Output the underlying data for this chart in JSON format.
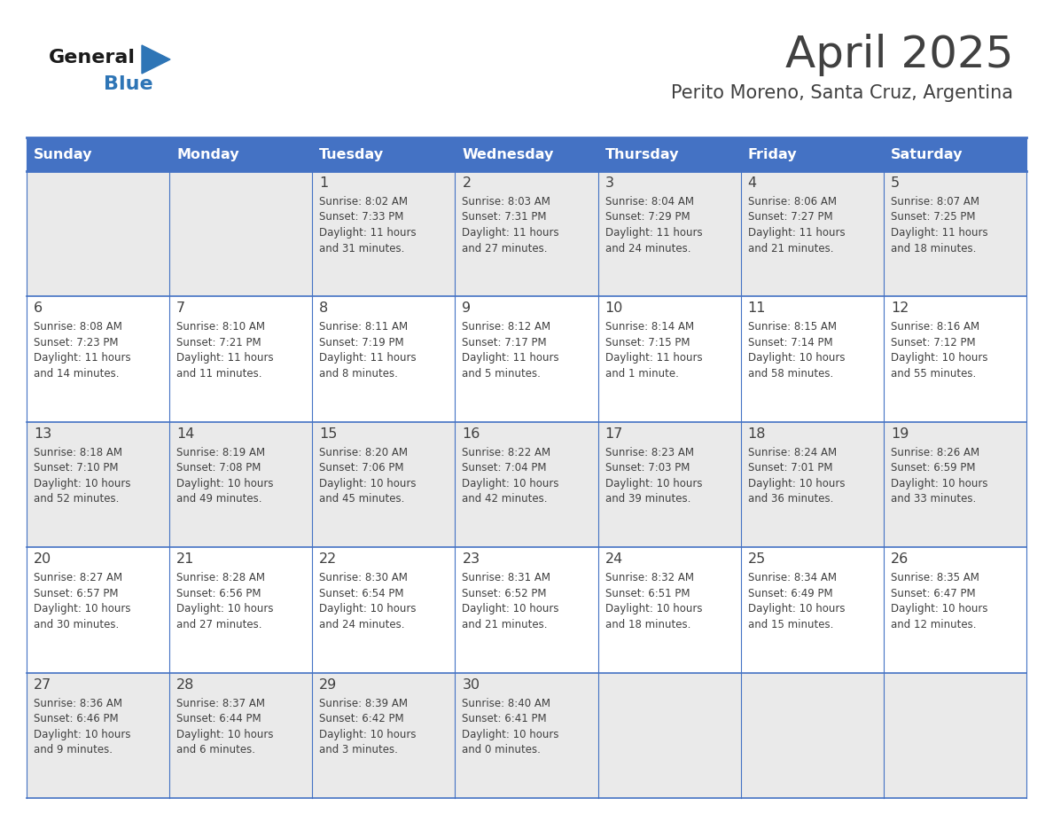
{
  "title": "April 2025",
  "subtitle": "Perito Moreno, Santa Cruz, Argentina",
  "days_of_week": [
    "Sunday",
    "Monday",
    "Tuesday",
    "Wednesday",
    "Thursday",
    "Friday",
    "Saturday"
  ],
  "header_bg": "#4472C4",
  "header_text_color": "#FFFFFF",
  "row_bg_odd": "#EAEAEA",
  "row_bg_even": "#FFFFFF",
  "text_color": "#404040",
  "line_color": "#4472C4",
  "bg_color": "#FFFFFF",
  "logo_general_color": "#1a1a1a",
  "logo_blue_color": "#2E75B6",
  "weeks": [
    [
      {
        "day": "",
        "info": ""
      },
      {
        "day": "",
        "info": ""
      },
      {
        "day": "1",
        "info": "Sunrise: 8:02 AM\nSunset: 7:33 PM\nDaylight: 11 hours\nand 31 minutes."
      },
      {
        "day": "2",
        "info": "Sunrise: 8:03 AM\nSunset: 7:31 PM\nDaylight: 11 hours\nand 27 minutes."
      },
      {
        "day": "3",
        "info": "Sunrise: 8:04 AM\nSunset: 7:29 PM\nDaylight: 11 hours\nand 24 minutes."
      },
      {
        "day": "4",
        "info": "Sunrise: 8:06 AM\nSunset: 7:27 PM\nDaylight: 11 hours\nand 21 minutes."
      },
      {
        "day": "5",
        "info": "Sunrise: 8:07 AM\nSunset: 7:25 PM\nDaylight: 11 hours\nand 18 minutes."
      }
    ],
    [
      {
        "day": "6",
        "info": "Sunrise: 8:08 AM\nSunset: 7:23 PM\nDaylight: 11 hours\nand 14 minutes."
      },
      {
        "day": "7",
        "info": "Sunrise: 8:10 AM\nSunset: 7:21 PM\nDaylight: 11 hours\nand 11 minutes."
      },
      {
        "day": "8",
        "info": "Sunrise: 8:11 AM\nSunset: 7:19 PM\nDaylight: 11 hours\nand 8 minutes."
      },
      {
        "day": "9",
        "info": "Sunrise: 8:12 AM\nSunset: 7:17 PM\nDaylight: 11 hours\nand 5 minutes."
      },
      {
        "day": "10",
        "info": "Sunrise: 8:14 AM\nSunset: 7:15 PM\nDaylight: 11 hours\nand 1 minute."
      },
      {
        "day": "11",
        "info": "Sunrise: 8:15 AM\nSunset: 7:14 PM\nDaylight: 10 hours\nand 58 minutes."
      },
      {
        "day": "12",
        "info": "Sunrise: 8:16 AM\nSunset: 7:12 PM\nDaylight: 10 hours\nand 55 minutes."
      }
    ],
    [
      {
        "day": "13",
        "info": "Sunrise: 8:18 AM\nSunset: 7:10 PM\nDaylight: 10 hours\nand 52 minutes."
      },
      {
        "day": "14",
        "info": "Sunrise: 8:19 AM\nSunset: 7:08 PM\nDaylight: 10 hours\nand 49 minutes."
      },
      {
        "day": "15",
        "info": "Sunrise: 8:20 AM\nSunset: 7:06 PM\nDaylight: 10 hours\nand 45 minutes."
      },
      {
        "day": "16",
        "info": "Sunrise: 8:22 AM\nSunset: 7:04 PM\nDaylight: 10 hours\nand 42 minutes."
      },
      {
        "day": "17",
        "info": "Sunrise: 8:23 AM\nSunset: 7:03 PM\nDaylight: 10 hours\nand 39 minutes."
      },
      {
        "day": "18",
        "info": "Sunrise: 8:24 AM\nSunset: 7:01 PM\nDaylight: 10 hours\nand 36 minutes."
      },
      {
        "day": "19",
        "info": "Sunrise: 8:26 AM\nSunset: 6:59 PM\nDaylight: 10 hours\nand 33 minutes."
      }
    ],
    [
      {
        "day": "20",
        "info": "Sunrise: 8:27 AM\nSunset: 6:57 PM\nDaylight: 10 hours\nand 30 minutes."
      },
      {
        "day": "21",
        "info": "Sunrise: 8:28 AM\nSunset: 6:56 PM\nDaylight: 10 hours\nand 27 minutes."
      },
      {
        "day": "22",
        "info": "Sunrise: 8:30 AM\nSunset: 6:54 PM\nDaylight: 10 hours\nand 24 minutes."
      },
      {
        "day": "23",
        "info": "Sunrise: 8:31 AM\nSunset: 6:52 PM\nDaylight: 10 hours\nand 21 minutes."
      },
      {
        "day": "24",
        "info": "Sunrise: 8:32 AM\nSunset: 6:51 PM\nDaylight: 10 hours\nand 18 minutes."
      },
      {
        "day": "25",
        "info": "Sunrise: 8:34 AM\nSunset: 6:49 PM\nDaylight: 10 hours\nand 15 minutes."
      },
      {
        "day": "26",
        "info": "Sunrise: 8:35 AM\nSunset: 6:47 PM\nDaylight: 10 hours\nand 12 minutes."
      }
    ],
    [
      {
        "day": "27",
        "info": "Sunrise: 8:36 AM\nSunset: 6:46 PM\nDaylight: 10 hours\nand 9 minutes."
      },
      {
        "day": "28",
        "info": "Sunrise: 8:37 AM\nSunset: 6:44 PM\nDaylight: 10 hours\nand 6 minutes."
      },
      {
        "day": "29",
        "info": "Sunrise: 8:39 AM\nSunset: 6:42 PM\nDaylight: 10 hours\nand 3 minutes."
      },
      {
        "day": "30",
        "info": "Sunrise: 8:40 AM\nSunset: 6:41 PM\nDaylight: 10 hours\nand 0 minutes."
      },
      {
        "day": "",
        "info": ""
      },
      {
        "day": "",
        "info": ""
      },
      {
        "day": "",
        "info": ""
      }
    ]
  ]
}
